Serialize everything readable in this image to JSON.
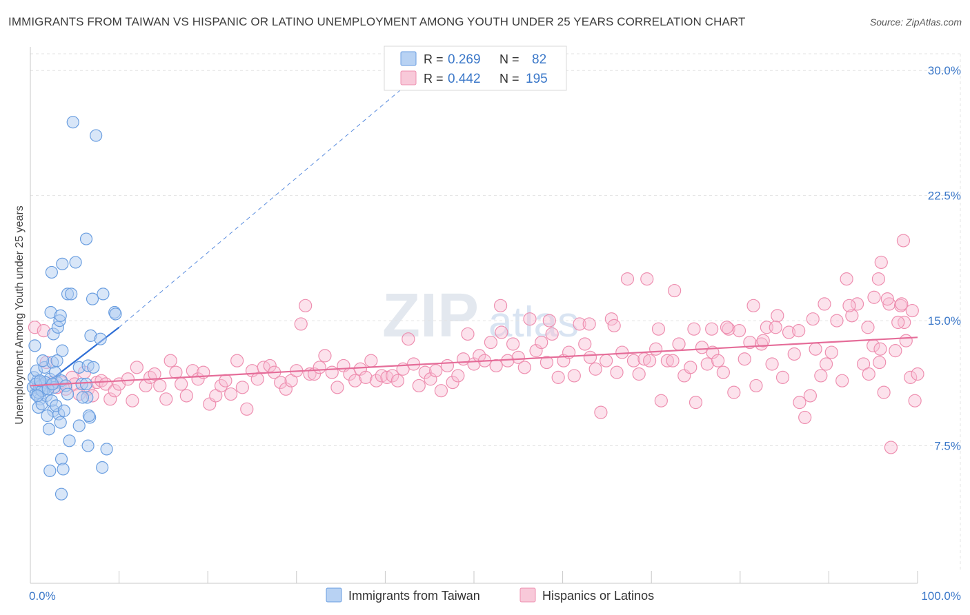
{
  "title": "IMMIGRANTS FROM TAIWAN VS HISPANIC OR LATINO UNEMPLOYMENT AMONG YOUTH UNDER 25 YEARS CORRELATION CHART",
  "source": "Source: ZipAtlas.com",
  "watermark": {
    "zip": "ZIP",
    "atlas": "atlas"
  },
  "chart_data": {
    "type": "scatter",
    "xlabel": "",
    "ylabel": "Unemployment Among Youth under 25 years",
    "xlim": [
      0,
      100
    ],
    "ylim": [
      0,
      31
    ],
    "x_tick_labels": [
      "0.0%",
      "100.0%"
    ],
    "y_ticks": [
      7.5,
      15.0,
      22.5,
      30.0
    ],
    "y_tick_labels": [
      "7.5%",
      "15.0%",
      "22.5%",
      "30.0%"
    ],
    "grid": true,
    "legend_position": "top-center",
    "colors": {
      "taiwan": "#6a9ee0",
      "hispanic": "#ee8fb0",
      "taiwan_line": "#2f6fd6",
      "hispanic_line": "#e56d99",
      "axis_text": "#3b78c9"
    },
    "legend": [
      {
        "r_label": "R =",
        "r_value": "0.269",
        "n_label": "N =",
        "n_value": "82"
      },
      {
        "r_label": "R =",
        "r_value": "0.442",
        "n_label": "N =",
        "n_value": "195"
      }
    ],
    "bottom_legend": [
      "Immigrants from Taiwan",
      "Hispanics or Latinos"
    ],
    "series": [
      {
        "name": "Immigrants from Taiwan",
        "trend": {
          "x0": 0,
          "y0": 10.5,
          "x1": 10,
          "y1": 14.6,
          "dash_to_x": 45,
          "dash_to_y": 30.3
        },
        "points": [
          [
            0.5,
            13.5
          ],
          [
            0.3,
            11.0
          ],
          [
            0.6,
            10.6
          ],
          [
            0.8,
            11.4
          ],
          [
            1.0,
            10.9
          ],
          [
            1.2,
            11.3
          ],
          [
            0.4,
            11.6
          ],
          [
            0.7,
            12.0
          ],
          [
            1.5,
            11.2
          ],
          [
            1.1,
            10.3
          ],
          [
            0.9,
            9.8
          ],
          [
            1.3,
            10.0
          ],
          [
            1.8,
            10.5
          ],
          [
            2.0,
            11.1
          ],
          [
            2.2,
            11.5
          ],
          [
            1.6,
            12.2
          ],
          [
            2.5,
            12.5
          ],
          [
            1.4,
            12.6
          ],
          [
            2.8,
            11.9
          ],
          [
            3.0,
            11.3
          ],
          [
            2.4,
            10.2
          ],
          [
            2.6,
            9.6
          ],
          [
            3.2,
            9.4
          ],
          [
            2.9,
            9.9
          ],
          [
            1.9,
            9.3
          ],
          [
            2.1,
            8.5
          ],
          [
            3.4,
            8.9
          ],
          [
            2.3,
            15.5
          ],
          [
            2.6,
            14.2
          ],
          [
            3.1,
            14.6
          ],
          [
            3.3,
            15.0
          ],
          [
            3.4,
            15.3
          ],
          [
            3.6,
            13.2
          ],
          [
            2.4,
            17.9
          ],
          [
            3.0,
            12.6
          ],
          [
            3.5,
            11.4
          ],
          [
            4.0,
            11.1
          ],
          [
            4.2,
            10.6
          ],
          [
            3.8,
            9.6
          ],
          [
            4.4,
            7.8
          ],
          [
            3.5,
            6.7
          ],
          [
            3.7,
            6.1
          ],
          [
            2.2,
            6.0
          ],
          [
            3.5,
            4.6
          ],
          [
            4.8,
            26.9
          ],
          [
            7.4,
            26.1
          ],
          [
            6.3,
            19.9
          ],
          [
            5.1,
            18.5
          ],
          [
            3.6,
            18.4
          ],
          [
            4.2,
            16.6
          ],
          [
            4.6,
            16.6
          ],
          [
            8.2,
            16.6
          ],
          [
            7.0,
            16.3
          ],
          [
            9.5,
            15.5
          ],
          [
            9.6,
            15.4
          ],
          [
            6.8,
            14.1
          ],
          [
            7.9,
            13.9
          ],
          [
            5.5,
            12.2
          ],
          [
            6.5,
            12.3
          ],
          [
            7.1,
            12.2
          ],
          [
            5.8,
            11.2
          ],
          [
            6.3,
            11.2
          ],
          [
            6.4,
            10.4
          ],
          [
            5.9,
            10.4
          ],
          [
            6.7,
            9.2
          ],
          [
            6.6,
            9.3
          ],
          [
            5.5,
            8.7
          ],
          [
            6.5,
            7.5
          ],
          [
            8.6,
            7.3
          ],
          [
            8.1,
            6.2
          ],
          [
            1.0,
            11.0
          ],
          [
            1.6,
            10.9
          ],
          [
            2.7,
            11.0
          ],
          [
            0.9,
            10.7
          ],
          [
            1.2,
            11.1
          ],
          [
            1.7,
            11.3
          ],
          [
            0.6,
            11.2
          ],
          [
            1.3,
            10.8
          ],
          [
            2.0,
            10.9
          ],
          [
            2.5,
            11.2
          ],
          [
            1.1,
            11.4
          ],
          [
            0.8,
            10.5
          ]
        ]
      },
      {
        "name": "Hispanics or Latinos",
        "trend": {
          "x0": 0,
          "y0": 11.1,
          "x1": 100,
          "y1": 14.0
        },
        "points": [
          [
            0.5,
            14.6
          ],
          [
            1.5,
            14.4
          ],
          [
            1.8,
            12.5
          ],
          [
            2.5,
            11.3
          ],
          [
            3.0,
            11.0
          ],
          [
            3.5,
            11.3
          ],
          [
            4.0,
            10.9
          ],
          [
            4.7,
            11.6
          ],
          [
            5.0,
            11.2
          ],
          [
            5.5,
            10.6
          ],
          [
            6.1,
            11.9
          ],
          [
            6.5,
            10.9
          ],
          [
            7.0,
            10.5
          ],
          [
            7.5,
            11.3
          ],
          [
            8.0,
            11.4
          ],
          [
            8.5,
            11.2
          ],
          [
            9.0,
            10.3
          ],
          [
            9.5,
            10.8
          ],
          [
            10.0,
            11.2
          ],
          [
            11.0,
            11.5
          ],
          [
            11.5,
            10.2
          ],
          [
            12.0,
            12.2
          ],
          [
            13.0,
            11.1
          ],
          [
            13.5,
            11.6
          ],
          [
            14.0,
            11.8
          ],
          [
            14.6,
            11.1
          ],
          [
            15.3,
            10.3
          ],
          [
            15.8,
            12.6
          ],
          [
            16.4,
            11.9
          ],
          [
            17.0,
            11.2
          ],
          [
            17.6,
            10.5
          ],
          [
            18.3,
            12.0
          ],
          [
            18.9,
            11.5
          ],
          [
            19.5,
            11.9
          ],
          [
            20.2,
            10.0
          ],
          [
            20.9,
            10.5
          ],
          [
            21.5,
            11.1
          ],
          [
            22.0,
            11.4
          ],
          [
            22.6,
            10.6
          ],
          [
            23.3,
            12.6
          ],
          [
            23.9,
            11.0
          ],
          [
            24.4,
            9.7
          ],
          [
            25.0,
            12.0
          ],
          [
            25.6,
            11.5
          ],
          [
            26.3,
            12.2
          ],
          [
            27.0,
            12.3
          ],
          [
            27.5,
            11.9
          ],
          [
            28.2,
            11.3
          ],
          [
            28.8,
            10.9
          ],
          [
            29.4,
            11.4
          ],
          [
            30.0,
            12.0
          ],
          [
            30.5,
            14.8
          ],
          [
            31.0,
            15.9
          ],
          [
            31.5,
            11.8
          ],
          [
            32.0,
            11.8
          ],
          [
            32.6,
            12.2
          ],
          [
            33.2,
            12.9
          ],
          [
            34.0,
            11.9
          ],
          [
            34.6,
            11.0
          ],
          [
            35.3,
            12.3
          ],
          [
            36.0,
            11.8
          ],
          [
            36.6,
            11.4
          ],
          [
            37.2,
            12.1
          ],
          [
            37.8,
            11.6
          ],
          [
            38.4,
            12.6
          ],
          [
            39.0,
            11.4
          ],
          [
            39.6,
            11.7
          ],
          [
            40.2,
            11.6
          ],
          [
            40.8,
            11.7
          ],
          [
            41.4,
            11.4
          ],
          [
            42.0,
            12.1
          ],
          [
            42.6,
            13.9
          ],
          [
            43.2,
            12.4
          ],
          [
            43.8,
            11.1
          ],
          [
            44.5,
            11.9
          ],
          [
            45.1,
            11.5
          ],
          [
            45.7,
            12.0
          ],
          [
            46.3,
            10.8
          ],
          [
            47.0,
            12.3
          ],
          [
            47.6,
            11.3
          ],
          [
            48.2,
            11.7
          ],
          [
            48.8,
            12.7
          ],
          [
            49.3,
            14.2
          ],
          [
            50.0,
            12.4
          ],
          [
            50.6,
            12.9
          ],
          [
            51.2,
            12.6
          ],
          [
            51.9,
            13.7
          ],
          [
            52.5,
            12.3
          ],
          [
            53.1,
            14.3
          ],
          [
            53.8,
            12.6
          ],
          [
            54.4,
            13.6
          ],
          [
            55.0,
            12.8
          ],
          [
            55.7,
            12.2
          ],
          [
            56.3,
            15.1
          ],
          [
            57.0,
            13.2
          ],
          [
            57.6,
            13.7
          ],
          [
            58.2,
            12.5
          ],
          [
            58.8,
            14.2
          ],
          [
            59.5,
            11.6
          ],
          [
            60.1,
            12.6
          ],
          [
            60.7,
            13.1
          ],
          [
            61.3,
            11.7
          ],
          [
            61.9,
            14.8
          ],
          [
            62.5,
            13.6
          ],
          [
            63.1,
            12.8
          ],
          [
            63.7,
            12.1
          ],
          [
            64.3,
            9.5
          ],
          [
            64.9,
            12.6
          ],
          [
            65.5,
            15.1
          ],
          [
            66.1,
            11.9
          ],
          [
            66.7,
            13.1
          ],
          [
            67.3,
            17.5
          ],
          [
            68.0,
            12.6
          ],
          [
            68.6,
            11.8
          ],
          [
            69.2,
            12.7
          ],
          [
            69.8,
            12.6
          ],
          [
            70.5,
            13.3
          ],
          [
            71.1,
            10.2
          ],
          [
            71.8,
            12.6
          ],
          [
            72.4,
            12.6
          ],
          [
            73.1,
            13.6
          ],
          [
            73.7,
            11.7
          ],
          [
            74.4,
            12.2
          ],
          [
            75.0,
            10.1
          ],
          [
            75.7,
            13.4
          ],
          [
            76.3,
            12.4
          ],
          [
            76.9,
            13.1
          ],
          [
            77.5,
            12.6
          ],
          [
            78.1,
            11.9
          ],
          [
            78.7,
            14.5
          ],
          [
            79.3,
            10.7
          ],
          [
            79.9,
            14.4
          ],
          [
            80.5,
            12.7
          ],
          [
            81.1,
            13.7
          ],
          [
            81.8,
            11.1
          ],
          [
            82.4,
            13.6
          ],
          [
            83.0,
            14.6
          ],
          [
            83.6,
            12.4
          ],
          [
            84.2,
            15.3
          ],
          [
            84.8,
            11.6
          ],
          [
            85.5,
            14.3
          ],
          [
            86.1,
            13.0
          ],
          [
            86.7,
            10.1
          ],
          [
            87.3,
            9.2
          ],
          [
            87.9,
            10.5
          ],
          [
            88.5,
            13.3
          ],
          [
            89.1,
            11.7
          ],
          [
            89.7,
            12.4
          ],
          [
            90.3,
            13.1
          ],
          [
            90.9,
            15.0
          ],
          [
            91.5,
            11.4
          ],
          [
            92.0,
            17.5
          ],
          [
            92.6,
            15.3
          ],
          [
            93.2,
            16.0
          ],
          [
            93.9,
            12.4
          ],
          [
            94.5,
            11.8
          ],
          [
            95.1,
            16.4
          ],
          [
            95.7,
            12.5
          ],
          [
            96.2,
            10.7
          ],
          [
            96.8,
            16.0
          ],
          [
            97.5,
            13.2
          ],
          [
            98.1,
            15.9
          ],
          [
            98.7,
            13.8
          ],
          [
            99.2,
            11.6
          ],
          [
            99.7,
            10.2
          ],
          [
            98.4,
            19.8
          ],
          [
            95.9,
            18.5
          ],
          [
            95.6,
            17.5
          ],
          [
            98.2,
            16.0
          ],
          [
            95.0,
            13.5
          ],
          [
            97.0,
            7.4
          ],
          [
            95.8,
            13.3
          ],
          [
            99.4,
            15.6
          ],
          [
            100.0,
            11.8
          ],
          [
            98.5,
            14.9
          ],
          [
            53.0,
            15.9
          ],
          [
            58.5,
            15.0
          ],
          [
            63.0,
            14.8
          ],
          [
            65.8,
            14.7
          ],
          [
            69.5,
            17.5
          ],
          [
            70.8,
            14.5
          ],
          [
            72.6,
            16.8
          ],
          [
            74.8,
            14.5
          ],
          [
            76.8,
            14.5
          ],
          [
            78.5,
            14.6
          ],
          [
            81.5,
            15.9
          ],
          [
            82.6,
            13.8
          ],
          [
            84.0,
            14.6
          ],
          [
            86.6,
            14.4
          ],
          [
            88.2,
            15.1
          ],
          [
            89.5,
            16.0
          ],
          [
            92.3,
            15.9
          ],
          [
            94.4,
            14.6
          ],
          [
            96.6,
            16.3
          ],
          [
            97.8,
            14.9
          ]
        ]
      }
    ]
  }
}
